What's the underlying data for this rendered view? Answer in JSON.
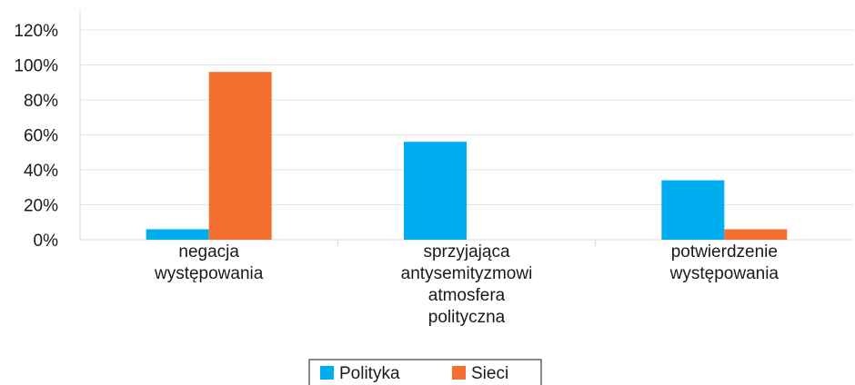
{
  "chart_data": {
    "type": "bar",
    "categories": [
      [
        "negacja",
        "występowania"
      ],
      [
        "sprzyjająca",
        "antysemityzmowi",
        "atmosfera",
        "polityczna"
      ],
      [
        "potwierdzenie",
        "występowania"
      ]
    ],
    "series": [
      {
        "name": "Polityka",
        "color": "#00adef",
        "values": [
          6,
          56,
          34
        ]
      },
      {
        "name": "Sieci",
        "color": "#f47030",
        "values": [
          96,
          0,
          6
        ]
      }
    ],
    "yticks": [
      "0%",
      "20%",
      "40%",
      "60%",
      "80%",
      "100%",
      "120%"
    ],
    "ylim": [
      0,
      120
    ],
    "grid": true,
    "legend_position": "bottom"
  }
}
